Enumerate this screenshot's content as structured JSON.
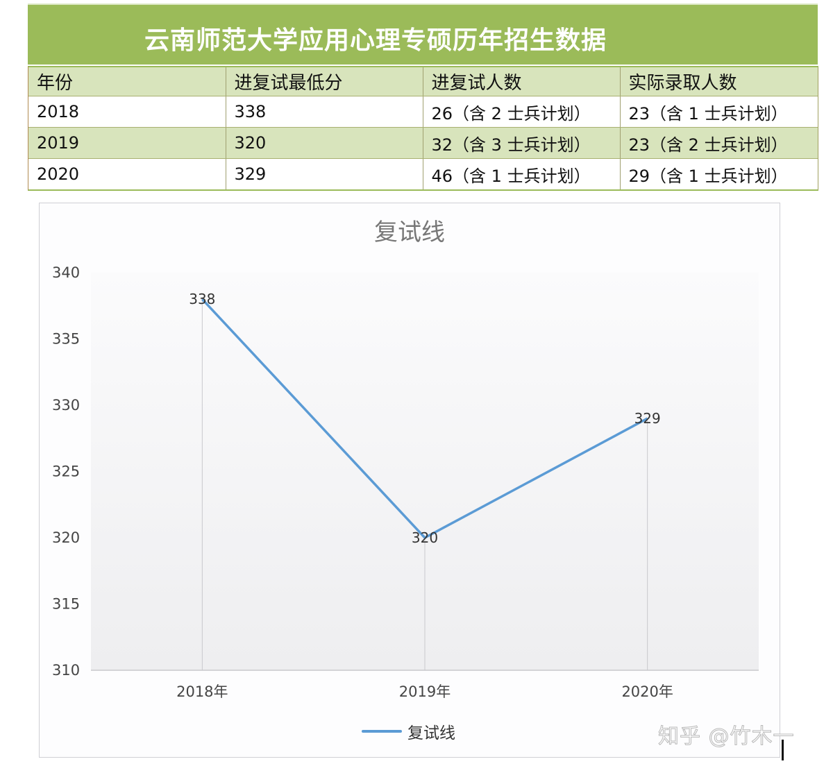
{
  "header": {
    "title": "云南师范大学应用心理专硕历年招生数据"
  },
  "table": {
    "columns": [
      "年份",
      "进复试最低分",
      "进复试人数",
      "实际录取人数"
    ],
    "rows": [
      [
        "2018",
        "338",
        "26（含 2 士兵计划）",
        "23（含 1 士兵计划）"
      ],
      [
        "2019",
        "320",
        "32（含 3 士兵计划）",
        "23（含 2 士兵计划）"
      ],
      [
        "2020",
        "329",
        "46（含 1 士兵计划）",
        "29（含 1 士兵计划）"
      ]
    ]
  },
  "chart": {
    "title": "复试线",
    "legend_label": "复试线",
    "line_color": "#5b9bd5",
    "y_ticks": [
      "340",
      "335",
      "330",
      "325",
      "320",
      "315",
      "310"
    ],
    "x_labels": [
      "2018年",
      "2019年",
      "2020年"
    ],
    "data_labels": [
      "338",
      "320",
      "329"
    ]
  },
  "watermark": "知乎 @竹木一",
  "chart_data": {
    "type": "line",
    "title": "复试线",
    "categories": [
      "2018年",
      "2019年",
      "2020年"
    ],
    "series": [
      {
        "name": "复试线",
        "values": [
          338,
          320,
          329
        ]
      }
    ],
    "xlabel": "",
    "ylabel": "",
    "ylim": [
      310,
      340
    ],
    "y_ticks": [
      310,
      315,
      320,
      325,
      330,
      335,
      340
    ],
    "grid": "vertical category lines",
    "legend_position": "bottom",
    "data_labels": true
  }
}
